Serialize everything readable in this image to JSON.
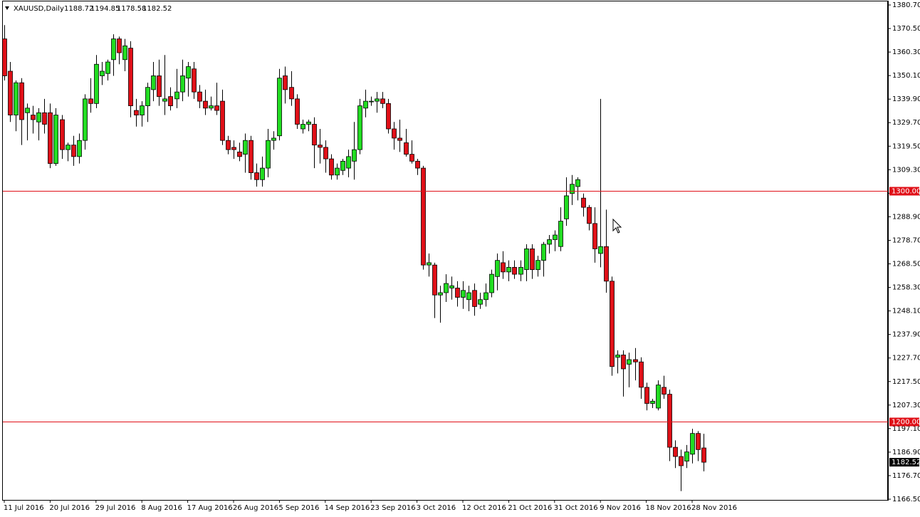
{
  "chart_data": {
    "type": "candlestick",
    "title": "XAUUSD,Daily",
    "categories": [
      "11 Jul 2016",
      null,
      null,
      null,
      null,
      null,
      null,
      null,
      "20 Jul 2016",
      null,
      null,
      null,
      null,
      null,
      null,
      null,
      "29 Jul 2016",
      null,
      null,
      null,
      null,
      null,
      null,
      null,
      "8 Aug 2016",
      null,
      null,
      null,
      null,
      null,
      null,
      null,
      "17 Aug 2016",
      null,
      null,
      null,
      null,
      null,
      null,
      null,
      "26 Aug 2016",
      null,
      null,
      null,
      null,
      null,
      null,
      null,
      "5 Sep 2016",
      null,
      null,
      null,
      null,
      null,
      null,
      null,
      "14 Sep 2016",
      null,
      null,
      null,
      null,
      null,
      null,
      null,
      "23 Sep 2016",
      null,
      null,
      null,
      null,
      null,
      null,
      null,
      "3 Oct 2016",
      null,
      null,
      null,
      null,
      null,
      null,
      null,
      "12 Oct 2016",
      null,
      null,
      null,
      null,
      null,
      null,
      null,
      "21 Oct 2016",
      null,
      null,
      null,
      null,
      null,
      null,
      null,
      "31 Oct 2016",
      null,
      null,
      null,
      null,
      null,
      null,
      null,
      "9 Nov 2016",
      null,
      null,
      null,
      null,
      null,
      null,
      null,
      "18 Nov 2016",
      null,
      null,
      null,
      null,
      null,
      null,
      null,
      "28 Nov 2016",
      null,
      null
    ],
    "open": [
      1366,
      1352,
      1333,
      1347,
      1334,
      1333,
      1330,
      1334,
      1334,
      1312,
      1331,
      1318,
      1320,
      1315,
      1322,
      1340,
      1338,
      1350,
      1351,
      1357,
      1366,
      1357,
      1362,
      1335,
      1333,
      1337,
      1344,
      1350,
      1339,
      1341,
      1340,
      1343,
      1349,
      1353,
      1343,
      1339,
      1336,
      1337,
      1339,
      1322,
      1319,
      1317,
      1316,
      1322,
      1308,
      1305,
      1310,
      1322,
      1324,
      1350,
      1345,
      1340,
      1327,
      1329,
      1329,
      1320,
      1319,
      1314,
      1307,
      1309,
      1310,
      1313,
      1318,
      1336,
      1339,
      1339,
      1340,
      1338,
      1327,
      1323,
      1321,
      1316,
      1313,
      1310,
      1268,
      1268,
      1255,
      1256,
      1258,
      1258,
      1254,
      1253,
      1257,
      1251,
      1253,
      1256,
      1263,
      1269,
      1265,
      1267,
      1264,
      1266,
      1275,
      1266,
      1270,
      1277,
      1279,
      1276,
      1288,
      1299,
      1302,
      1297,
      1293,
      1286,
      1273,
      1276,
      1261,
      1228,
      1229,
      1225,
      1227,
      1226,
      1215,
      1208,
      1206,
      1215,
      1212,
      1189,
      1185,
      1183,
      1186,
      1195,
      1188.72
    ],
    "high": [
      1372,
      1356,
      1348,
      1349,
      1338,
      1337,
      1336,
      1340,
      1338,
      1336,
      1333,
      1321,
      1324,
      1325,
      1342,
      1349,
      1359,
      1356,
      1357,
      1368,
      1367,
      1366,
      1365,
      1340,
      1339,
      1347,
      1356,
      1357,
      1359,
      1345,
      1353,
      1357,
      1356,
      1356,
      1346,
      1344,
      1341,
      1347,
      1344,
      1324,
      1322,
      1321,
      1325,
      1324,
      1312,
      1315,
      1327,
      1326,
      1353,
      1354,
      1352,
      1342,
      1331,
      1331,
      1332,
      1327,
      1322,
      1316,
      1312,
      1314,
      1318,
      1330,
      1340,
      1344,
      1341,
      1343,
      1343,
      1340,
      1330,
      1331,
      1327,
      1322,
      1314,
      1311,
      1273,
      1269,
      1259,
      1264,
      1263,
      1261,
      1261,
      1259,
      1260,
      1256,
      1260,
      1266,
      1273,
      1274,
      1270,
      1270,
      1270,
      1277,
      1277,
      1272,
      1278,
      1281,
      1283,
      1293,
      1306,
      1307,
      1306,
      1299,
      1294,
      1293,
      1340,
      1292,
      1263,
      1231,
      1231,
      1230,
      1232,
      1228,
      1217,
      1210,
      1218,
      1220,
      1214,
      1192,
      1188,
      1190,
      1197,
      1196,
      1194.85
    ],
    "low": [
      1348,
      1330,
      1326,
      1320,
      1322,
      1325,
      1322,
      1325,
      1310,
      1311,
      1314,
      1313,
      1311,
      1312,
      1318,
      1334,
      1336,
      1346,
      1348,
      1350,
      1355,
      1352,
      1332,
      1328,
      1328,
      1330,
      1339,
      1337,
      1333,
      1335,
      1336,
      1339,
      1341,
      1340,
      1336,
      1333,
      1335,
      1333,
      1320,
      1316,
      1314,
      1313,
      1308,
      1305,
      1302,
      1302,
      1306,
      1318,
      1322,
      1338,
      1337,
      1327,
      1325,
      1326,
      1310,
      1312,
      1308,
      1305,
      1305,
      1307,
      1306,
      1305,
      1316,
      1332,
      1337,
      1334,
      1336,
      1325,
      1318,
      1317,
      1315,
      1312,
      1307,
      1266,
      1263,
      1245,
      1243,
      1252,
      1253,
      1250,
      1249,
      1248,
      1246,
      1249,
      1250,
      1254,
      1257,
      1262,
      1261,
      1262,
      1261,
      1261,
      1262,
      1263,
      1263,
      1273,
      1274,
      1274,
      1285,
      1294,
      1296,
      1289,
      1283,
      1269,
      1267,
      1256,
      1220,
      1221,
      1211,
      1215,
      1218,
      1210,
      1205,
      1206,
      1205,
      1210,
      1183,
      1180,
      1170,
      1180,
      1182,
      1183,
      1178.58
    ],
    "close": [
      1350,
      1333,
      1347,
      1331,
      1336,
      1331,
      1334,
      1329,
      1312,
      1333,
      1318,
      1320,
      1315,
      1322,
      1340,
      1338,
      1355,
      1352,
      1356,
      1366,
      1360,
      1363,
      1337,
      1333,
      1337,
      1345,
      1350,
      1341,
      1340,
      1337,
      1343,
      1350,
      1354,
      1343,
      1339,
      1336,
      1337,
      1335,
      1322,
      1318,
      1318,
      1315,
      1322,
      1308,
      1305,
      1310,
      1322,
      1323,
      1349,
      1344,
      1340,
      1329,
      1329,
      1330,
      1320,
      1319,
      1314,
      1307,
      1310,
      1313,
      1315,
      1318,
      1337,
      1339,
      1339,
      1340,
      1338,
      1327,
      1323,
      1322,
      1316,
      1313,
      1310,
      1268,
      1269,
      1255,
      1256,
      1260,
      1259,
      1254,
      1257,
      1256,
      1250,
      1253,
      1256,
      1264,
      1270,
      1265,
      1267,
      1264,
      1267,
      1275,
      1266,
      1270,
      1277,
      1279,
      1281,
      1287,
      1298,
      1303,
      1305,
      1293,
      1286,
      1275,
      1276,
      1261,
      1224,
      1229,
      1223,
      1227,
      1226,
      1215,
      1208,
      1209,
      1216,
      1212,
      1189,
      1185,
      1181,
      1187,
      1195,
      1188,
      1182.52
    ],
    "up_color": "#22dd22",
    "down_color": "#e01018",
    "ylim": [
      1166.5,
      1380.7
    ],
    "yticks": [
      {
        "value": 1380.7,
        "label": "1380.70"
      },
      {
        "value": 1370.5,
        "label": "1370.50"
      },
      {
        "value": 1360.3,
        "label": "1360.30"
      },
      {
        "value": 1350.1,
        "label": "1350.10"
      },
      {
        "value": 1339.9,
        "label": "1339.90"
      },
      {
        "value": 1329.7,
        "label": "1329.70"
      },
      {
        "value": 1319.5,
        "label": "1319.50"
      },
      {
        "value": 1309.3,
        "label": "1309.30"
      },
      {
        "value": 1299.1,
        "label": "1299.10"
      },
      {
        "value": 1288.9,
        "label": "1288.90"
      },
      {
        "value": 1278.7,
        "label": "1278.70"
      },
      {
        "value": 1268.5,
        "label": "1268.50"
      },
      {
        "value": 1258.3,
        "label": "1258.30"
      },
      {
        "value": 1248.1,
        "label": "1248.10"
      },
      {
        "value": 1237.9,
        "label": "1237.90"
      },
      {
        "value": 1227.7,
        "label": "1227.70"
      },
      {
        "value": 1217.5,
        "label": "1217.50"
      },
      {
        "value": 1207.3,
        "label": "1207.30"
      },
      {
        "value": 1197.1,
        "label": "1197.10"
      },
      {
        "value": 1186.9,
        "label": "1186.90"
      },
      {
        "value": 1176.7,
        "label": "1176.70"
      },
      {
        "value": 1166.5,
        "label": "1166.50"
      }
    ],
    "hlines": [
      {
        "value": 1300,
        "label": "1300.00",
        "color": "#e01018"
      },
      {
        "value": 1200,
        "label": "1200.00",
        "color": "#e01018"
      }
    ]
  }
}
